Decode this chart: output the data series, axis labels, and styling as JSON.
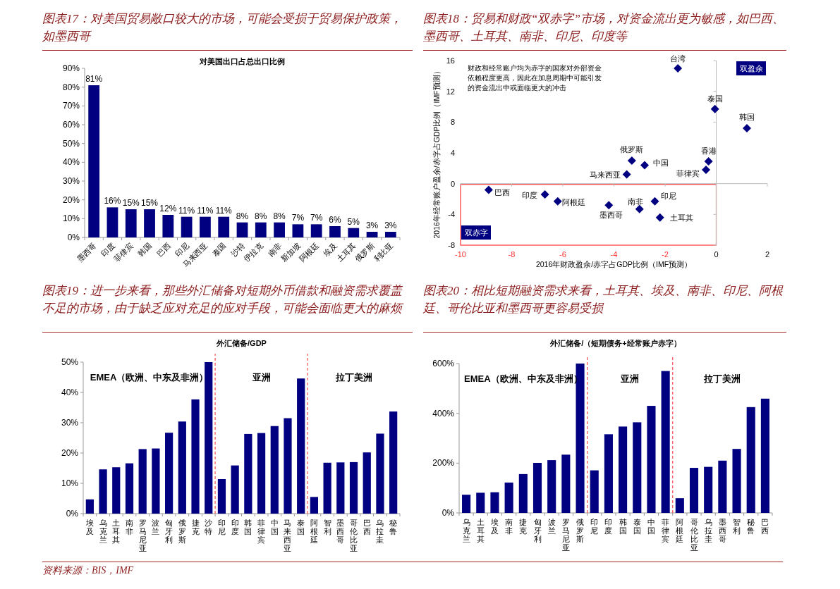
{
  "chart_data": [
    {
      "type": "bar",
      "title": "图表17：对美国贸易敞口较大的市场，可能会受损于贸易保护政策，如墨西哥",
      "subtitle": "对美国出口占总出口比例",
      "categories": [
        "墨西哥",
        "印度",
        "菲律宾",
        "韩国",
        "巴西",
        "印尼",
        "马来西亚",
        "泰国",
        "沙特",
        "伊拉克",
        "南非",
        "新加坡",
        "阿根廷",
        "埃及",
        "土耳其",
        "俄罗斯",
        "利比亚"
      ],
      "values": [
        81,
        16,
        15,
        15,
        12,
        11,
        11,
        11,
        8,
        8,
        8,
        7,
        7,
        6,
        5,
        3,
        3
      ],
      "value_labels": [
        "81%",
        "16%",
        "15%",
        "15%",
        "12%",
        "11%",
        "11%",
        "11%",
        "8%",
        "8%",
        "8%",
        "7%",
        "7%",
        "6%",
        "5%",
        "3%",
        "3%"
      ],
      "color": "#000080",
      "ylim": [
        0,
        90
      ],
      "yticks": [
        {
          "value": 0,
          "label": "0%"
        },
        {
          "value": 10,
          "label": "10%"
        },
        {
          "value": 20,
          "label": "20%"
        },
        {
          "value": 30,
          "label": "30%"
        },
        {
          "value": 40,
          "label": "40%"
        },
        {
          "value": 50,
          "label": "50%"
        },
        {
          "value": 60,
          "label": "60%"
        },
        {
          "value": 70,
          "label": "70%"
        },
        {
          "value": 80,
          "label": "80%"
        },
        {
          "value": 90,
          "label": "90%"
        }
      ]
    },
    {
      "type": "scatter",
      "title": "图表18：贸易和财政“双赤字”市场，对资金流出更为敏感，如巴西、墨西哥、土耳其、南非、印尼、印度等",
      "xlabel": "2016年财政盈余/赤字占GDP比例（IMF预测）",
      "ylabel": "2016年经常账户盈余/赤字占GDP比例（IMF预测）",
      "marker": "diamond",
      "xlim": [
        -10,
        2
      ],
      "xticks": [
        -10,
        -8,
        -6,
        -4,
        -2,
        0,
        2
      ],
      "ylim": [
        -8,
        16
      ],
      "yticks": [
        -8,
        -4,
        0,
        4,
        8,
        12,
        16
      ],
      "annotations": [
        "财政和经常账户均为赤字的国家对外部资金依赖程度更高，因此在加息周期中可能引发的资金流出中或面临更大的冲击",
        "双盈余",
        "双赤字"
      ],
      "series": [
        {
          "name": "台湾",
          "color": "#000080",
          "x": [
            -1.5
          ],
          "values": [
            15.0
          ]
        },
        {
          "name": "泰国",
          "color": "#000080",
          "x": [
            -0.05
          ],
          "values": [
            9.7
          ]
        },
        {
          "name": "韩国",
          "color": "#000080",
          "x": [
            1.2
          ],
          "values": [
            7.2
          ]
        },
        {
          "name": "香港",
          "color": "#000080",
          "x": [
            -0.3
          ],
          "values": [
            2.9
          ]
        },
        {
          "name": "菲律宾",
          "color": "#000080",
          "x": [
            -0.4
          ],
          "values": [
            1.8
          ]
        },
        {
          "name": "俄罗斯",
          "color": "#000080",
          "x": [
            -3.3
          ],
          "values": [
            3.0
          ]
        },
        {
          "name": "中国",
          "color": "#000080",
          "x": [
            -2.8
          ],
          "values": [
            2.4
          ]
        },
        {
          "name": "马来西亚",
          "color": "#000080",
          "x": [
            -3.5
          ],
          "values": [
            1.2
          ]
        },
        {
          "name": "巴西",
          "color": "#000080",
          "x": [
            -8.9
          ],
          "values": [
            -0.8
          ]
        },
        {
          "name": "印度",
          "color": "#000080",
          "x": [
            -6.7
          ],
          "values": [
            -1.4
          ]
        },
        {
          "name": "阿根廷",
          "color": "#000080",
          "x": [
            -6.2
          ],
          "values": [
            -2.3
          ]
        },
        {
          "name": "墨西哥",
          "color": "#000080",
          "x": [
            -4.2
          ],
          "values": [
            -2.8
          ]
        },
        {
          "name": "南非",
          "color": "#000080",
          "x": [
            -3.0
          ],
          "values": [
            -3.3
          ]
        },
        {
          "name": "印尼",
          "color": "#000080",
          "x": [
            -2.4
          ],
          "values": [
            -2.3
          ]
        },
        {
          "name": "土耳其",
          "color": "#000080",
          "x": [
            -2.2
          ],
          "values": [
            -4.4
          ]
        }
      ]
    },
    {
      "type": "bar",
      "title": "图表19：进一步来看，那些外汇储备对短期外币借款和融资需求覆盖不足的市场，由于缺乏应对充足的应对手段，可能会面临更大的麻烦",
      "subtitle": "外汇储备/GDP",
      "categories": [
        "埃及",
        "乌克兰",
        "土耳其",
        "南非",
        "罗马尼亚",
        "波兰",
        "匈牙利",
        "俄罗斯",
        "捷克",
        "沙特",
        "印尼",
        "印度",
        "韩国",
        "菲律宾",
        "中国",
        "马来西亚",
        "泰国",
        "阿根廷",
        "智利",
        "墨西哥",
        "哥伦比亚",
        "巴西",
        "乌拉圭",
        "秘鲁"
      ],
      "values": [
        4.7,
        14.6,
        15.3,
        16.6,
        21.3,
        21.5,
        26.7,
        30.4,
        37.7,
        50,
        11.4,
        15.9,
        26.3,
        26.6,
        28.9,
        31.5,
        44.6,
        5.5,
        16.8,
        16.9,
        17.0,
        20.2,
        26.4,
        33.7
      ],
      "color": "#000080",
      "ylim": [
        0,
        50
      ],
      "yticks": [
        {
          "value": 0,
          "label": "0%"
        },
        {
          "value": 10,
          "label": "10%"
        },
        {
          "value": 20,
          "label": "20%"
        },
        {
          "value": 30,
          "label": "30%"
        },
        {
          "value": 40,
          "label": "40%"
        },
        {
          "value": 50,
          "label": "50%"
        }
      ],
      "annotations": [
        "EMEA（欧洲、中东及非洲）",
        "亚洲",
        "拉丁美洲"
      ]
    },
    {
      "type": "bar",
      "title": "图表20：相比短期融资需求来看，土耳其、埃及、南非、印尼、阿根廷、哥伦比亚和墨西哥更容易受损",
      "subtitle": "外汇储备/（短期债务+经常账户赤字）",
      "categories": [
        "乌克兰",
        "土耳其",
        "埃及",
        "南非",
        "捷克",
        "匈牙利",
        "波兰",
        "罗马尼亚",
        "俄罗斯",
        "印尼",
        "印度",
        "韩国",
        "泰国",
        "中国",
        "菲律宾",
        "阿根廷",
        "哥伦比亚",
        "乌拉圭",
        "墨西哥",
        "智利",
        "秘鲁",
        "巴西"
      ],
      "values": [
        73,
        81,
        83,
        122,
        156,
        201,
        212,
        234,
        600,
        171,
        316,
        347,
        364,
        430,
        570,
        59,
        181,
        185,
        210,
        257,
        425,
        459
      ],
      "color": "#000080",
      "ylim": [
        0,
        600
      ],
      "yticks": [
        {
          "value": 0,
          "label": "0%"
        },
        {
          "value": 200,
          "label": "200%"
        },
        {
          "value": 400,
          "label": "400%"
        },
        {
          "value": 600,
          "label": "600%"
        }
      ],
      "annotations": [
        "EMEA（欧洲、中东及非洲）",
        "亚洲",
        "拉丁美洲",
        "资料来源：BIS，IMF"
      ]
    }
  ]
}
